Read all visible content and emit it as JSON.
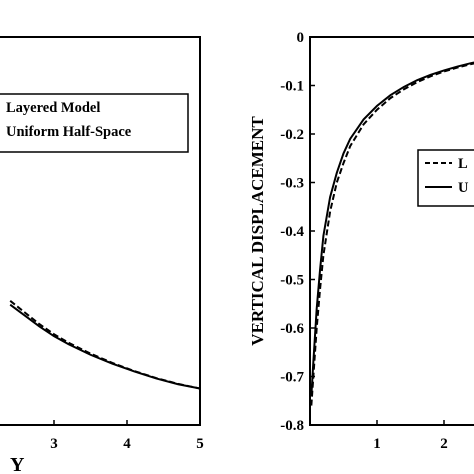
{
  "chart_data": [
    {
      "type": "line",
      "xlim": [
        null,
        5
      ],
      "ylim": [
        null,
        null
      ],
      "x_ticks": [
        "3",
        "4",
        "5"
      ],
      "xlabel": "Y",
      "ylabel": "",
      "grid": false,
      "legend": {
        "placement": "top-right",
        "entries": [
          "Layered Model",
          "Uniform Half-Space"
        ]
      },
      "series": [
        {
          "name": "Layered Model",
          "style": "dashed",
          "x": [
            2.4,
            2.6,
            2.8,
            3.0,
            3.2,
            3.5,
            3.8,
            4.1,
            4.4,
            4.7,
            5.0
          ],
          "y_relative": [
            0.32,
            0.29,
            0.26,
            0.234,
            0.212,
            0.184,
            0.16,
            0.139,
            0.121,
            0.106,
            0.094
          ]
        },
        {
          "name": "Uniform Half-Space",
          "style": "solid",
          "x": [
            2.4,
            2.6,
            2.8,
            3.0,
            3.2,
            3.5,
            3.8,
            4.1,
            4.4,
            4.7,
            5.0
          ],
          "y_relative": [
            0.31,
            0.282,
            0.254,
            0.229,
            0.208,
            0.181,
            0.158,
            0.138,
            0.12,
            0.105,
            0.094
          ]
        }
      ]
    },
    {
      "type": "line",
      "xlim": [
        0,
        null
      ],
      "ylim": [
        -0.8,
        0
      ],
      "y_ticks": [
        "0",
        "-0.1",
        "-0.2",
        "-0.3",
        "-0.4",
        "-0.5",
        "-0.6",
        "-0.7",
        "-0.8"
      ],
      "x_ticks": [
        "1",
        "2"
      ],
      "xlabel": "",
      "ylabel": "VERTICAL DISPLACEMENT",
      "grid": false,
      "legend": {
        "placement": "right",
        "entries": [
          "L",
          "U"
        ]
      },
      "series": [
        {
          "name": "L",
          "style": "dashed",
          "x": [
            0.02,
            0.05,
            0.1,
            0.15,
            0.2,
            0.3,
            0.4,
            0.5,
            0.6,
            0.8,
            1.0,
            1.2,
            1.4,
            1.6,
            1.8,
            2.0,
            2.2,
            2.4,
            2.6
          ],
          "y": [
            -0.76,
            -0.7,
            -0.6,
            -0.52,
            -0.45,
            -0.36,
            -0.3,
            -0.26,
            -0.225,
            -0.18,
            -0.15,
            -0.126,
            -0.108,
            -0.093,
            -0.081,
            -0.071,
            -0.063,
            -0.056,
            -0.05
          ]
        },
        {
          "name": "U",
          "style": "solid",
          "x": [
            0.02,
            0.05,
            0.1,
            0.15,
            0.2,
            0.3,
            0.4,
            0.5,
            0.6,
            0.8,
            1.0,
            1.2,
            1.4,
            1.6,
            1.8,
            2.0,
            2.2,
            2.4,
            2.6
          ],
          "y": [
            -0.74,
            -0.67,
            -0.56,
            -0.48,
            -0.41,
            -0.33,
            -0.28,
            -0.24,
            -0.21,
            -0.17,
            -0.142,
            -0.12,
            -0.103,
            -0.089,
            -0.078,
            -0.069,
            -0.061,
            -0.054,
            -0.048
          ]
        }
      ]
    }
  ]
}
